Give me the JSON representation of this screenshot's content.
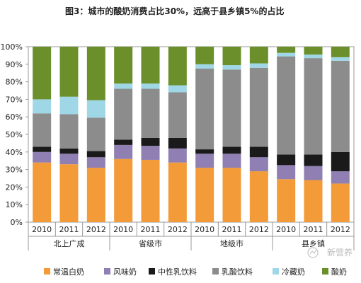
{
  "chart_data": {
    "type": "bar",
    "stacked": true,
    "title": "图3：城市的酸奶消费占比30%，远高于县乡镇5%的占比",
    "ylim": [
      0,
      100
    ],
    "yticks": [
      "0%",
      "10%",
      "20%",
      "30%",
      "40%",
      "50%",
      "60%",
      "70%",
      "80%",
      "90%",
      "100%"
    ],
    "groups": [
      "北上广成",
      "省级市",
      "地级市",
      "县乡镇"
    ],
    "years": [
      "2010",
      "2011",
      "2012"
    ],
    "categories": [
      "北上广成 2010",
      "北上广成 2011",
      "北上广成 2012",
      "省级市 2010",
      "省级市 2011",
      "省级市 2012",
      "地级市 2010",
      "地级市 2011",
      "地级市 2012",
      "县乡镇 2010",
      "县乡镇 2011",
      "县乡镇 2012"
    ],
    "series": [
      {
        "name": "常温白奶",
        "color": "#f29b38",
        "values": [
          34,
          33,
          31,
          36,
          35.5,
          34,
          31,
          31,
          29,
          24.5,
          24,
          22
        ]
      },
      {
        "name": "风味奶",
        "color": "#8f7fb3",
        "values": [
          6,
          6,
          6,
          8,
          8,
          8,
          8,
          8,
          8,
          8,
          8,
          7
        ]
      },
      {
        "name": "中性乳饮料",
        "color": "#1a1a1a",
        "values": [
          3,
          3,
          3.5,
          3,
          4.5,
          6,
          2.5,
          4,
          6,
          6,
          6.5,
          11
        ]
      },
      {
        "name": "乳酸饮料",
        "color": "#8c8c8c",
        "values": [
          19,
          19.5,
          19,
          29,
          28,
          26,
          46,
          44,
          45,
          56,
          55,
          52
        ]
      },
      {
        "name": "冷藏奶",
        "color": "#9fd7e6",
        "values": [
          8,
          10,
          10,
          3,
          3,
          4,
          2.5,
          2.5,
          2.5,
          2,
          2,
          2
        ]
      },
      {
        "name": "酸奶",
        "color": "#6b8f2a",
        "values": [
          30,
          28.5,
          30.5,
          21,
          21,
          22,
          10,
          10.5,
          9.5,
          3.5,
          4.5,
          6
        ]
      }
    ]
  },
  "watermark": "新营养"
}
